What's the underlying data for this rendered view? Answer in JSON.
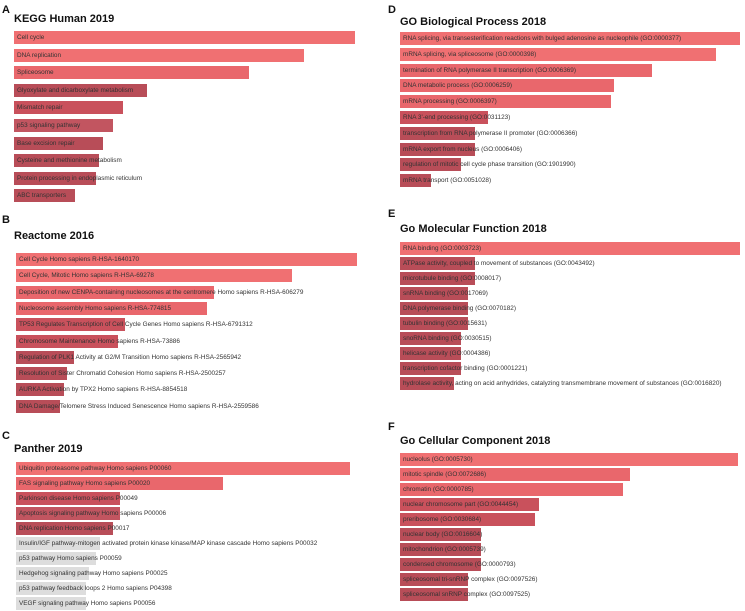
{
  "chart_data": [
    {
      "type": "bar",
      "orientation": "horizontal",
      "panel_letter": "A",
      "title": "KEGG Human 2019",
      "categories": [
        "Cell cycle",
        "DNA replication",
        "Spliceosome",
        "Glyoxylate and dicarboxylate metabolism",
        "Mismatch repair",
        "p53 signaling pathway",
        "Base excision repair",
        "Cysteine and methionine metabolism",
        "Protein processing in endoplasmic reticulum",
        "ABC transporters"
      ],
      "values": [
        100,
        85,
        69,
        39,
        32,
        29,
        26,
        25,
        24,
        18
      ],
      "colors": [
        "#f07072",
        "#f07072",
        "#e9676c",
        "#b84d58",
        "#c9515c",
        "#c25560",
        "#b84d58",
        "#b84d58",
        "#b84d58",
        "#b84d58"
      ]
    },
    {
      "type": "bar",
      "orientation": "horizontal",
      "panel_letter": "B",
      "title": "Reactome 2016",
      "categories": [
        "Cell Cycle Homo sapiens R-HSA-1640170",
        "Cell Cycle, Mitotic Homo sapiens R-HSA-69278",
        "Deposition of new CENPA-containing nucleosomes at the centromere Homo sapiens R-HSA-606279",
        "Nucleosome assembly Homo sapiens R-HSA-774815",
        "TP53 Regulates Transcription of Cell Cycle Genes Homo sapiens R-HSA-6791312",
        "Chromosome Maintenance Homo sapiens R-HSA-73886",
        "Regulation of PLK1 Activity at G2/M Transition Homo sapiens R-HSA-2565942",
        "Resolution of Sister Chromatid Cohesion Homo sapiens R-HSA-2500257",
        "AURKA Activation by TPX2 Homo sapiens R-HSA-8854518",
        "DNA Damage/Telomere Stress Induced Senescence Homo sapiens R-HSA-2559586"
      ],
      "values": [
        100,
        81,
        58,
        56,
        32,
        30,
        17,
        15,
        14,
        13
      ],
      "colors": [
        "#f07072",
        "#f07072",
        "#e9676c",
        "#e9676c",
        "#c9515c",
        "#c9515c",
        "#b84d58",
        "#b84d58",
        "#b84d58",
        "#b84d58"
      ]
    },
    {
      "type": "bar",
      "orientation": "horizontal",
      "panel_letter": "C",
      "title": "Panther 2019",
      "categories": [
        "Ubiquitin proteasome pathway Homo sapiens P00060",
        "FAS signaling pathway Homo sapiens P00020",
        "Parkinson disease Homo sapiens P00049",
        "Apoptosis signaling pathway Homo sapiens P00006",
        "DNA replication Homo sapiens P00017",
        "Insulin/IGF pathway-mitogen activated protein kinase kinase/MAP kinase cascade Homo sapiens P00032",
        "p53 pathway Homo sapiens P00059",
        "Hedgehog signaling pathway Homo sapiens P00025",
        "p53 pathway feedback loops 2 Homo sapiens P04398",
        "VEGF signaling pathway Homo sapiens P00056"
      ],
      "values": [
        100,
        62,
        31,
        31,
        29,
        25,
        24,
        22,
        21,
        21
      ],
      "colors": [
        "#f07072",
        "#e9676c",
        "#c9515c",
        "#c25560",
        "#b84d58",
        "#dddddd",
        "#dddddd",
        "#dddddd",
        "#dddddd",
        "#dddddd"
      ]
    },
    {
      "type": "bar",
      "orientation": "horizontal",
      "panel_letter": "D",
      "title": "GO Biological Process 2018",
      "categories": [
        "RNA splicing, via transesterification reactions with bulged adenosine as nucleophile (GO:0000377)",
        "mRNA splicing, via spliceosome (GO:0000398)",
        "termination of RNA polymerase II transcription (GO:0006369)",
        "DNA metabolic process (GO:0006259)",
        "mRNA processing (GO:0006397)",
        "RNA 3'-end processing (GO:0031123)",
        "transcription from RNA polymerase II promoter (GO:0006366)",
        "mRNA export from nucleus (GO:0006406)",
        "regulation of mitotic cell cycle phase transition (GO:1901990)",
        "mRNA transport (GO:0051028)"
      ],
      "values": [
        100,
        93,
        74,
        63,
        62,
        26,
        22,
        22,
        18,
        9
      ],
      "colors": [
        "#f07072",
        "#f07072",
        "#e9676c",
        "#e9676c",
        "#e9676c",
        "#c9515c",
        "#b84d58",
        "#b84d58",
        "#b84d58",
        "#b84d58"
      ]
    },
    {
      "type": "bar",
      "orientation": "horizontal",
      "panel_letter": "E",
      "title": "Go Molecular Function 2018",
      "categories": [
        "RNA binding (GO:0003723)",
        "ATPase activity, coupled to movement of substances (GO:0043492)",
        "microtubule binding (GO:0008017)",
        "snRNA binding (GO:0017069)",
        "DNA polymerase binding (GO:0070182)",
        "tubulin binding (GO:0015631)",
        "snoRNA binding (GO:0030515)",
        "helicase activity (GO:0004386)",
        "transcription cofactor binding (GO:0001221)",
        "hydrolase activity, acting on acid anhydrides, catalyzing transmembrane movement of substances (GO:0016820)"
      ],
      "values": [
        100,
        22,
        22,
        20,
        20,
        20,
        18,
        18,
        18,
        16
      ],
      "colors": [
        "#f07072",
        "#b84d58",
        "#b84d58",
        "#b84d58",
        "#b84d58",
        "#b84d58",
        "#b84d58",
        "#b84d58",
        "#b84d58",
        "#b84d58"
      ]
    },
    {
      "type": "bar",
      "orientation": "horizontal",
      "panel_letter": "F",
      "title": "Go Cellular Component 2018",
      "categories": [
        "nucleolus (GO:0005730)",
        "mitotic spindle (GO:0072686)",
        "chromatin (GO:0000785)",
        "nuclear chromosome part (GO:0044454)",
        "preribosome (GO:0030684)",
        "nuclear body (GO:0016604)",
        "mitochondrion (GO:0005739)",
        "condensed chromosome (GO:0000793)",
        "spliceosomal tri-snRNP complex (GO:0097526)",
        "spliceosomal snRNP complex (GO:0097525)"
      ],
      "values": [
        100,
        68,
        66,
        41,
        40,
        24,
        24,
        24,
        20,
        20
      ],
      "colors": [
        "#f07072",
        "#e9676c",
        "#e9676c",
        "#c9515c",
        "#c9515c",
        "#b84d58",
        "#b84d58",
        "#b84d58",
        "#b84d58",
        "#b84d58"
      ]
    }
  ]
}
